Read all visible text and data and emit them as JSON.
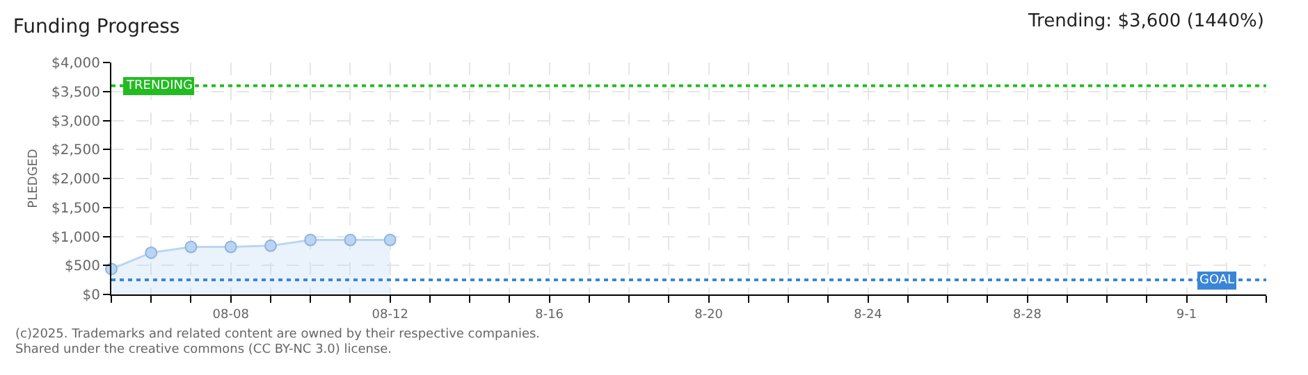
{
  "chart_data": {
    "type": "area",
    "title": "Funding Progress",
    "ylabel": "PLEDGED",
    "x": [
      "--08-05",
      "--08-06",
      "--08-07",
      "--08-08",
      "--08-09",
      "--08-10",
      "--08-11",
      "--08-12"
    ],
    "series": [
      {
        "color": "#b9d5f3",
        "values": [
          440,
          720,
          820,
          820,
          840,
          940,
          940,
          940
        ]
      }
    ],
    "marker": "circle",
    "xlim": [
      "--08-05",
      "--09-03"
    ],
    "xticks": [
      {
        "value": "--08-05",
        "label": null
      },
      {
        "value": "--08-06",
        "label": null
      },
      {
        "value": "--08-07",
        "label": null
      },
      {
        "value": "--08-08",
        "label": "08-08"
      },
      {
        "value": "--08-09",
        "label": null
      },
      {
        "value": "--08-10",
        "label": null
      },
      {
        "value": "--08-11",
        "label": null
      },
      {
        "value": "--08-12",
        "label": "08-12"
      },
      {
        "value": "--08-13",
        "label": null
      },
      {
        "value": "--08-14",
        "label": null
      },
      {
        "value": "--08-15",
        "label": null
      },
      {
        "value": "--08-16",
        "label": "8-16"
      },
      {
        "value": "--08-17",
        "label": null
      },
      {
        "value": "--08-18",
        "label": null
      },
      {
        "value": "--08-19",
        "label": null
      },
      {
        "value": "--08-20",
        "label": "8-20"
      },
      {
        "value": "--08-21",
        "label": null
      },
      {
        "value": "--08-22",
        "label": null
      },
      {
        "value": "--08-23",
        "label": null
      },
      {
        "value": "--08-24",
        "label": "8-24"
      },
      {
        "value": "--08-25",
        "label": null
      },
      {
        "value": "--08-26",
        "label": null
      },
      {
        "value": "--08-27",
        "label": null
      },
      {
        "value": "--08-28",
        "label": "8-28"
      },
      {
        "value": "--08-29",
        "label": null
      },
      {
        "value": "--08-30",
        "label": null
      },
      {
        "value": "--08-31",
        "label": null
      },
      {
        "value": "--09-01",
        "label": "9-1"
      },
      {
        "value": "--09-02",
        "label": null
      },
      {
        "value": "--09-03",
        "label": null
      }
    ],
    "ylim": [
      0,
      4000
    ],
    "yticks": [
      {
        "value": 0,
        "label": "$0"
      },
      {
        "value": 500,
        "label": "$500"
      },
      {
        "value": 1000,
        "label": "$1,000"
      },
      {
        "value": 1500,
        "label": "$1,500"
      },
      {
        "value": 2000,
        "label": "$2,000"
      },
      {
        "value": 2500,
        "label": "$2,500"
      },
      {
        "value": 3000,
        "label": "$3,000"
      },
      {
        "value": 3500,
        "label": "$3,500"
      },
      {
        "value": 4000,
        "label": "$4,000"
      }
    ],
    "grid": true,
    "ref_lines": [
      {
        "axis": "y",
        "value": 3600,
        "label": "TRENDING",
        "color": "#22bb22",
        "line_style": "dotted"
      },
      {
        "axis": "y",
        "value": 250,
        "label": "GOAL",
        "color": "#3a86d6",
        "line_style": "dotted"
      }
    ],
    "annotations": [
      "Trending: $3,600 (1440%)",
      "(c)2025. Trademarks and related content are owned by their respective companies.",
      "Shared under the creative commons (CC BY-NC 3.0) license."
    ]
  }
}
